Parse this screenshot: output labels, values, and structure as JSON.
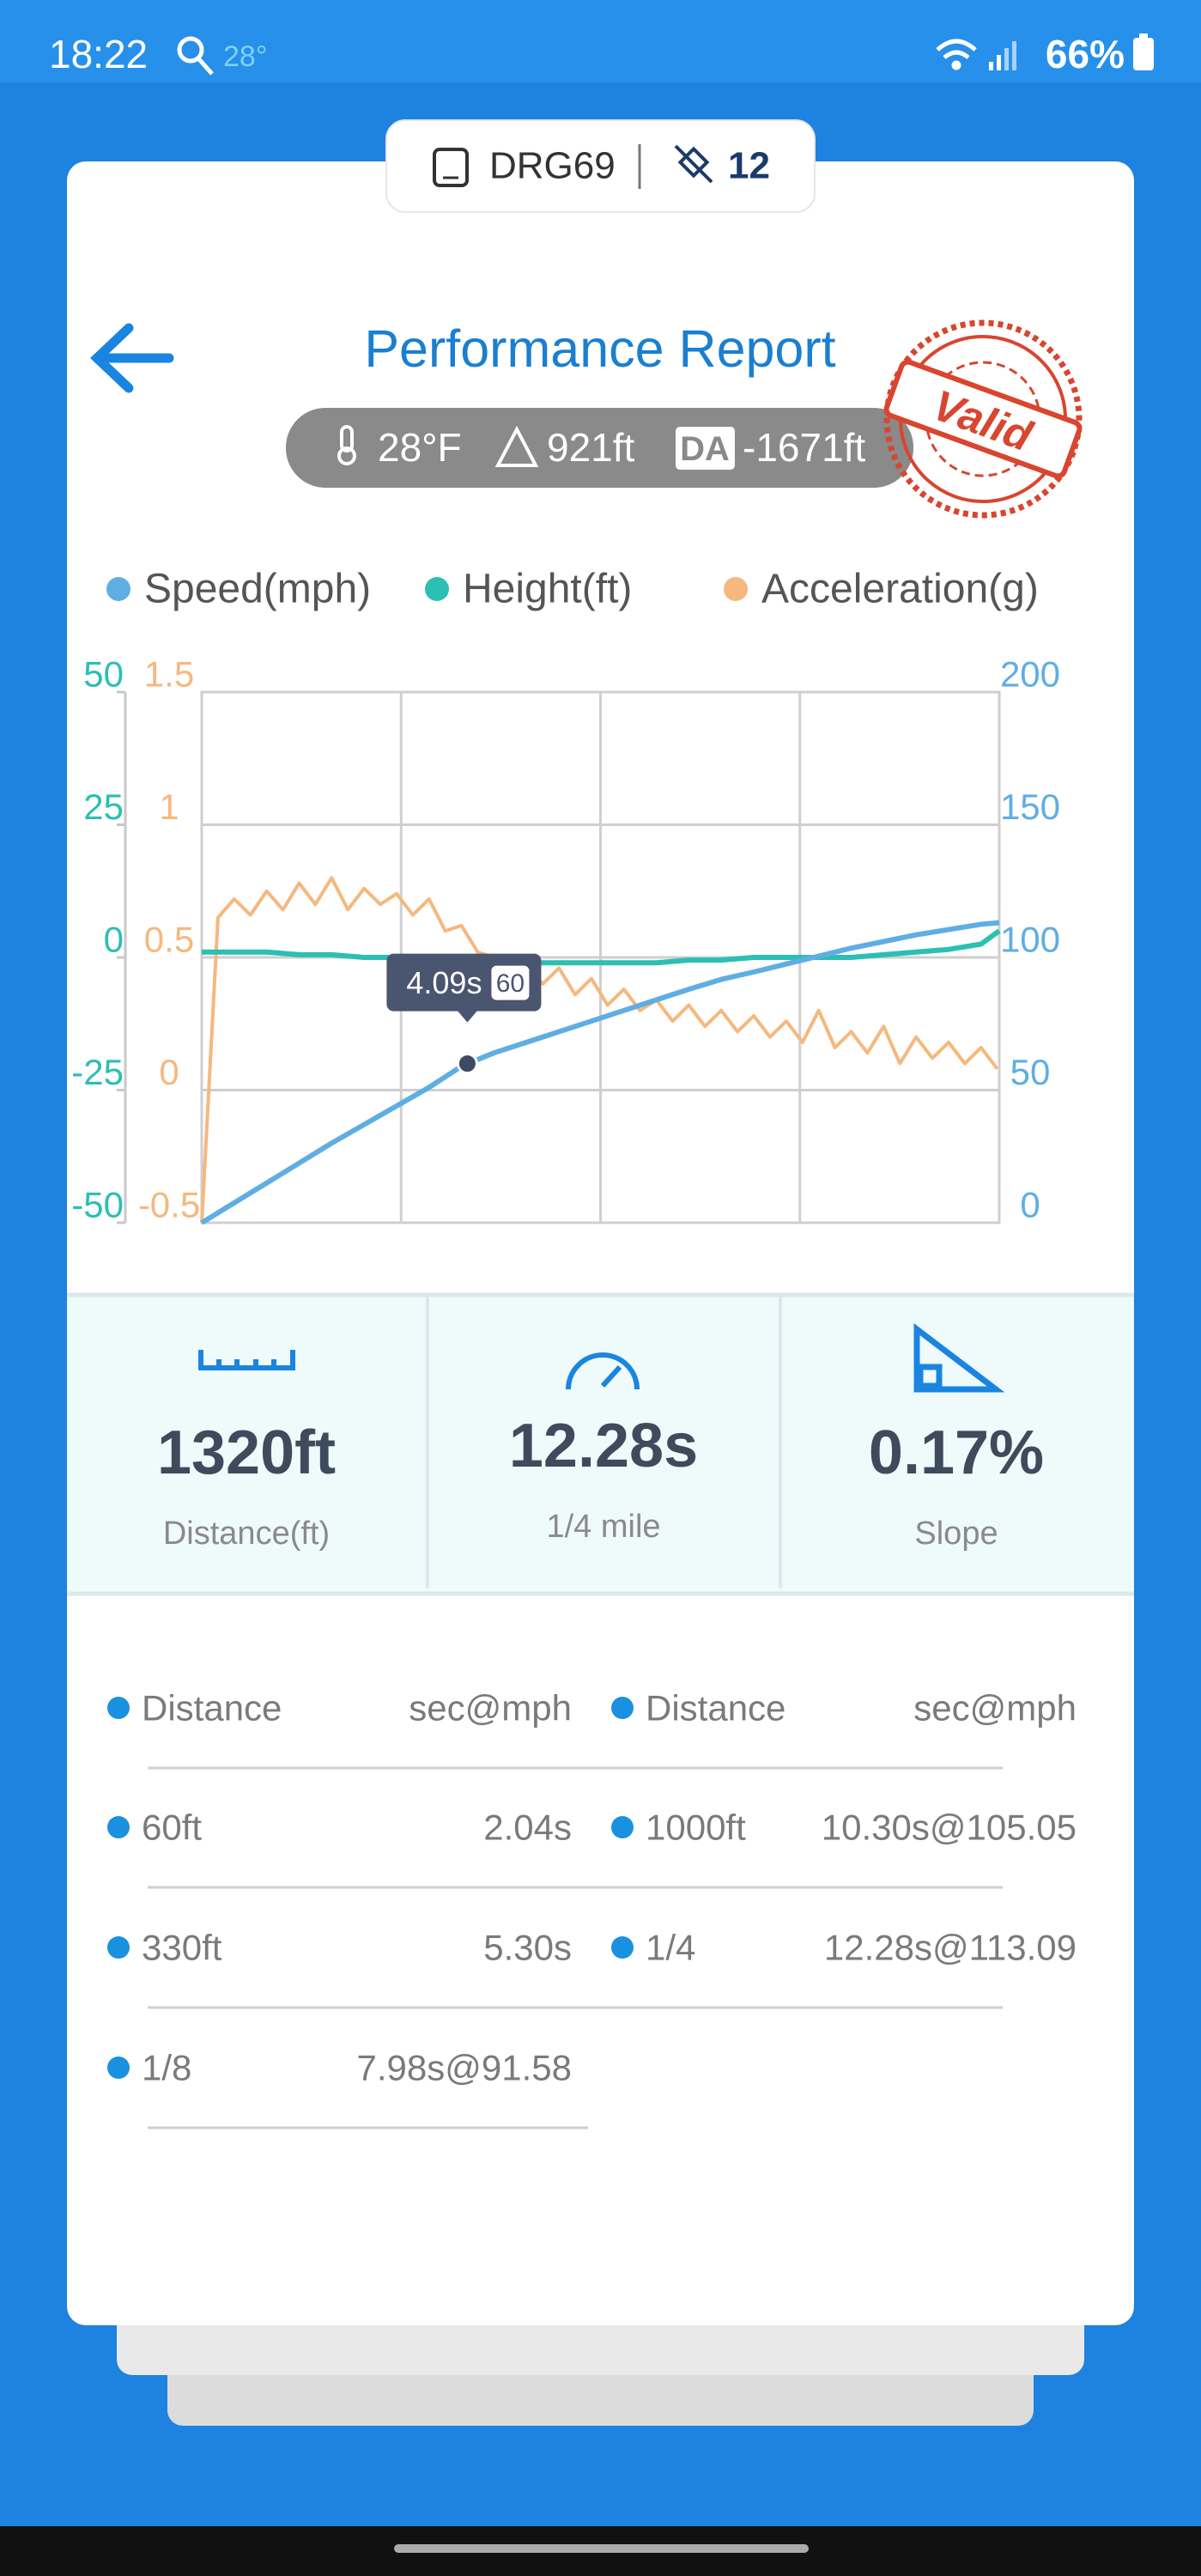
{
  "status_bar": {
    "time": "18:22",
    "temperature": "28°",
    "battery": "66%"
  },
  "device": {
    "name": "DRG69",
    "satellites": "12"
  },
  "header": {
    "title": "Performance Report",
    "temperature": "28°F",
    "altitude": "921ft",
    "density_label": "DA",
    "density_altitude": "-1671ft",
    "stamp": "Valid"
  },
  "chart_data": {
    "type": "line",
    "x": [
      0,
      0.5,
      1,
      1.5,
      2,
      2.5,
      3,
      3.5,
      4,
      4.5,
      5,
      5.5,
      6,
      6.5,
      7,
      7.5,
      8,
      8.5,
      9,
      9.5,
      10,
      10.5,
      11,
      11.5,
      12,
      12.28
    ],
    "xlim": [
      0,
      12.28
    ],
    "series": [
      {
        "name": "Speed(mph)",
        "color": "#5faee3",
        "axis": "y2",
        "values": [
          0,
          7.5,
          15,
          22.5,
          30,
          37,
          44,
          51,
          59,
          64,
          68,
          72,
          76,
          80,
          84,
          88,
          91.7,
          94.5,
          97.5,
          100.5,
          103.5,
          106,
          108.5,
          110.5,
          112.5,
          113.09
        ]
      },
      {
        "name": "Height(ft)",
        "color": "#2cbfb3",
        "values": [
          1,
          1,
          1,
          0.5,
          0.5,
          0,
          0,
          -0.5,
          -0.5,
          -1,
          -1,
          -1,
          -1,
          -1,
          -1,
          -0.5,
          -0.5,
          0,
          0,
          0,
          0,
          0.5,
          1,
          1.5,
          2.5,
          5
        ]
      },
      {
        "name": "Acceleration(g)",
        "color": "#f5b87e",
        "axis": "y3",
        "x": [
          0,
          0.25,
          0.5,
          0.75,
          1,
          1.25,
          1.5,
          1.75,
          2,
          2.25,
          2.5,
          2.75,
          3,
          3.25,
          3.5,
          3.75,
          4,
          4.25,
          4.5,
          4.75,
          5,
          5.25,
          5.5,
          5.75,
          6,
          6.25,
          6.5,
          6.75,
          7,
          7.25,
          7.5,
          7.75,
          8,
          8.25,
          8.5,
          8.75,
          9,
          9.25,
          9.5,
          9.75,
          10,
          10.25,
          10.5,
          10.75,
          11,
          11.25,
          11.5,
          11.75,
          12,
          12.25
        ],
        "values": [
          -0.5,
          0.65,
          0.72,
          0.66,
          0.75,
          0.68,
          0.78,
          0.7,
          0.8,
          0.68,
          0.76,
          0.7,
          0.74,
          0.66,
          0.72,
          0.6,
          0.62,
          0.52,
          0.5,
          0.44,
          0.48,
          0.4,
          0.46,
          0.36,
          0.42,
          0.32,
          0.38,
          0.3,
          0.34,
          0.26,
          0.32,
          0.24,
          0.3,
          0.22,
          0.28,
          0.2,
          0.26,
          0.18,
          0.3,
          0.16,
          0.22,
          0.14,
          0.24,
          0.1,
          0.2,
          0.12,
          0.18,
          0.1,
          0.16,
          0.08
        ]
      }
    ],
    "ylim": [
      -50,
      50
    ],
    "yticks": [
      -50,
      -25,
      0,
      25,
      50
    ],
    "y2lim": [
      0,
      200
    ],
    "y2ticks": [
      0,
      50,
      100,
      150,
      200
    ],
    "y3lim": [
      -0.5,
      1.5
    ],
    "y3ticks": [
      -0.5,
      0,
      0.5,
      1,
      1.5
    ],
    "grid": true,
    "legend": "top",
    "annotation": {
      "x": 4.09,
      "x_label": "4.09s",
      "y": 60,
      "axis": "y2"
    }
  },
  "stats": [
    {
      "value": "1320ft",
      "label": "Distance(ft)"
    },
    {
      "value": "12.28s",
      "label": "1/4 mile"
    },
    {
      "value": "0.17%",
      "label": "Slope"
    }
  ],
  "splits": {
    "left": {
      "header": [
        "Distance",
        "sec@mph"
      ],
      "rows": [
        [
          "60ft",
          "2.04s"
        ],
        [
          "330ft",
          "5.30s"
        ],
        [
          "1/8",
          "7.98s@91.58"
        ]
      ]
    },
    "right": {
      "header": [
        "Distance",
        "sec@mph"
      ],
      "rows": [
        [
          "1000ft",
          "10.30s@105.05"
        ],
        [
          "1/4",
          "12.28s@113.09"
        ]
      ]
    }
  }
}
